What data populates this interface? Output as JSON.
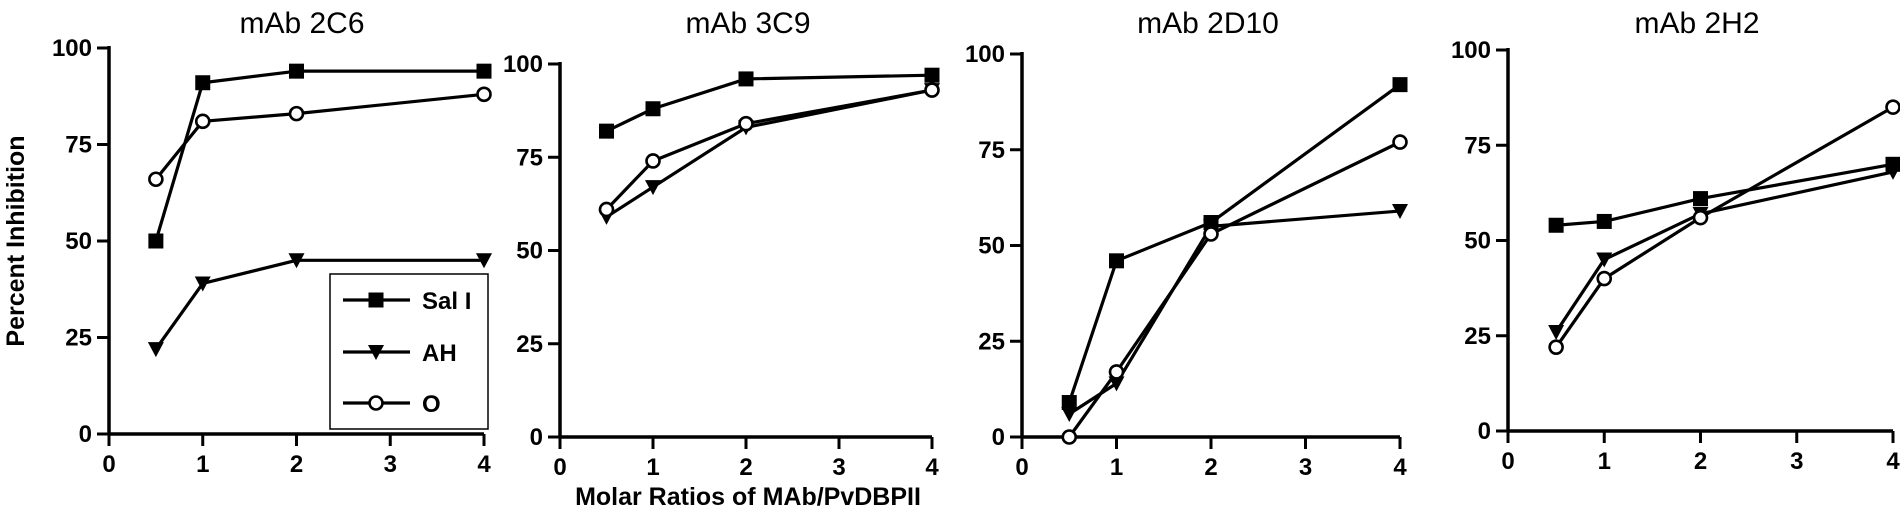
{
  "chart_data": [
    {
      "type": "line",
      "title": "mAb 2C6",
      "ylabel": "Percent Inhibition",
      "xlabel": "",
      "x": [
        0.5,
        1,
        2,
        4
      ],
      "xticks": [
        "0",
        "1",
        "2",
        "3",
        "4"
      ],
      "yticks": [
        "0",
        "25",
        "50",
        "75",
        "100"
      ],
      "xlim": [
        0,
        4
      ],
      "ylim": [
        0,
        100
      ],
      "legend": "bottom-right",
      "series": [
        {
          "name": "Sal I",
          "marker": "square",
          "values": [
            50,
            91,
            94,
            94
          ]
        },
        {
          "name": "AH",
          "marker": "triangle-down",
          "values": [
            22,
            39,
            45,
            45
          ]
        },
        {
          "name": "O",
          "marker": "circle-open",
          "values": [
            66,
            81,
            83,
            88
          ]
        }
      ]
    },
    {
      "type": "line",
      "title": "mAb 3C9",
      "ylabel": "",
      "xlabel": "Molar Ratios of MAb/PvDBPII",
      "x": [
        0.5,
        1,
        2,
        4
      ],
      "xticks": [
        "0",
        "1",
        "2",
        "3",
        "4"
      ],
      "yticks": [
        "0",
        "25",
        "50",
        "75",
        "100"
      ],
      "xlim": [
        0,
        4
      ],
      "ylim": [
        0,
        100
      ],
      "series": [
        {
          "name": "Sal I",
          "marker": "square",
          "values": [
            82,
            88,
            96,
            97
          ]
        },
        {
          "name": "AH",
          "marker": "triangle-down",
          "values": [
            59,
            67,
            83,
            93
          ]
        },
        {
          "name": "O",
          "marker": "circle-open",
          "values": [
            61,
            74,
            84,
            93
          ]
        }
      ]
    },
    {
      "type": "line",
      "title": "mAb 2D10",
      "ylabel": "",
      "xlabel": "",
      "x": [
        0.5,
        1,
        2,
        4
      ],
      "xticks": [
        "0",
        "1",
        "2",
        "3",
        "4"
      ],
      "yticks": [
        "0",
        "25",
        "50",
        "75",
        "100"
      ],
      "xlim": [
        0,
        4
      ],
      "ylim": [
        0,
        100
      ],
      "series": [
        {
          "name": "Sal I",
          "marker": "square",
          "values": [
            9,
            46,
            56,
            92
          ]
        },
        {
          "name": "AH",
          "marker": "triangle-down",
          "values": [
            6,
            14,
            55,
            59
          ]
        },
        {
          "name": "O",
          "marker": "circle-open",
          "values": [
            0,
            17,
            53,
            77
          ]
        }
      ]
    },
    {
      "type": "line",
      "title": "mAb 2H2",
      "ylabel": "",
      "xlabel": "",
      "x": [
        0.5,
        1,
        2,
        4
      ],
      "xticks": [
        "0",
        "1",
        "2",
        "3",
        "4"
      ],
      "yticks": [
        "0",
        "25",
        "50",
        "75",
        "100"
      ],
      "xlim": [
        0,
        4
      ],
      "ylim": [
        0,
        100
      ],
      "series": [
        {
          "name": "Sal I",
          "marker": "square",
          "values": [
            54,
            55,
            61,
            70
          ]
        },
        {
          "name": "AH",
          "marker": "triangle-down",
          "values": [
            26,
            45,
            57,
            68
          ]
        },
        {
          "name": "O",
          "marker": "circle-open",
          "values": [
            22,
            40,
            56,
            85
          ]
        }
      ]
    }
  ]
}
